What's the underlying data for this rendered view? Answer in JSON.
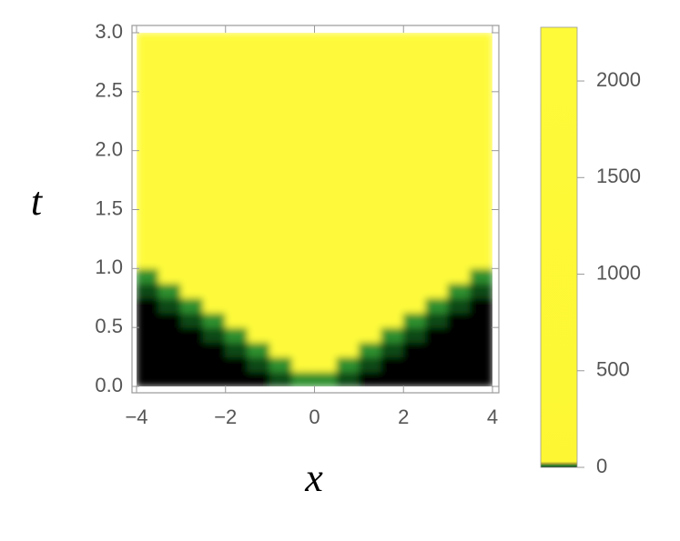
{
  "chart_data": {
    "type": "heatmap",
    "x_label": "x",
    "y_label": "t",
    "x_edges": [
      -4,
      -3.5,
      -3,
      -2.5,
      -2,
      -1.5,
      -1,
      -0.5,
      0,
      0.5,
      1,
      1.5,
      2,
      2.5,
      3,
      3.5,
      4
    ],
    "y_edges": [
      0,
      0.125,
      0.25,
      0.375,
      0.5,
      0.625,
      0.75,
      0.875,
      1,
      1.125,
      3
    ],
    "z": [
      [
        0,
        0,
        0,
        0,
        0,
        0,
        4,
        10,
        10,
        4,
        0,
        0,
        0,
        0,
        0,
        0
      ],
      [
        0,
        0,
        0,
        0,
        0,
        4,
        10,
        2250,
        2250,
        10,
        4,
        0,
        0,
        0,
        0,
        0
      ],
      [
        0,
        0,
        0,
        0,
        4,
        10,
        2250,
        2250,
        2250,
        2250,
        10,
        4,
        0,
        0,
        0,
        0
      ],
      [
        0,
        0,
        0,
        4,
        10,
        2250,
        2250,
        2250,
        2250,
        2250,
        2250,
        10,
        4,
        0,
        0,
        0
      ],
      [
        0,
        0,
        4,
        10,
        2250,
        2250,
        2250,
        2250,
        2250,
        2250,
        2250,
        2250,
        10,
        4,
        0,
        0
      ],
      [
        0,
        4,
        10,
        2250,
        2250,
        2250,
        2250,
        2250,
        2250,
        2250,
        2250,
        2250,
        2250,
        10,
        4,
        0
      ],
      [
        4,
        10,
        2250,
        2250,
        2250,
        2250,
        2250,
        2250,
        2250,
        2250,
        2250,
        2250,
        2250,
        2250,
        10,
        4
      ],
      [
        10,
        2250,
        2250,
        2250,
        2250,
        2250,
        2250,
        2250,
        2250,
        2250,
        2250,
        2250,
        2250,
        2250,
        2250,
        10
      ],
      [
        2250,
        2250,
        2250,
        2250,
        2250,
        2250,
        2250,
        2250,
        2250,
        2250,
        2250,
        2250,
        2250,
        2250,
        2250,
        2250
      ],
      [
        2250,
        2250,
        2250,
        2250,
        2250,
        2250,
        2250,
        2250,
        2250,
        2250,
        2250,
        2250,
        2250,
        2250,
        2250,
        2250
      ]
    ],
    "xlim": [
      -4,
      4
    ],
    "ylim": [
      0,
      3
    ],
    "xticks": [
      {
        "value": -4,
        "label": "−4"
      },
      {
        "value": -2,
        "label": "−2"
      },
      0,
      2,
      4
    ],
    "yticks": [
      {
        "value": 0,
        "label": "0.0"
      },
      0.5,
      {
        "value": 1,
        "label": "1.0"
      },
      1.5,
      {
        "value": 2,
        "label": "2.0"
      },
      2.5,
      {
        "value": 3,
        "label": "3.0"
      }
    ],
    "zlim": [
      0,
      2278
    ],
    "zticks": [
      0,
      500,
      1000,
      1500,
      2000
    ],
    "color_stops": [
      [
        0,
        "#000000"
      ],
      [
        4,
        "#0e4a14"
      ],
      [
        10,
        "#2f8f2f"
      ],
      [
        16,
        "#8f8a2e"
      ],
      [
        30,
        "#fdf733"
      ],
      [
        2278,
        "#fefa3a"
      ]
    ]
  }
}
